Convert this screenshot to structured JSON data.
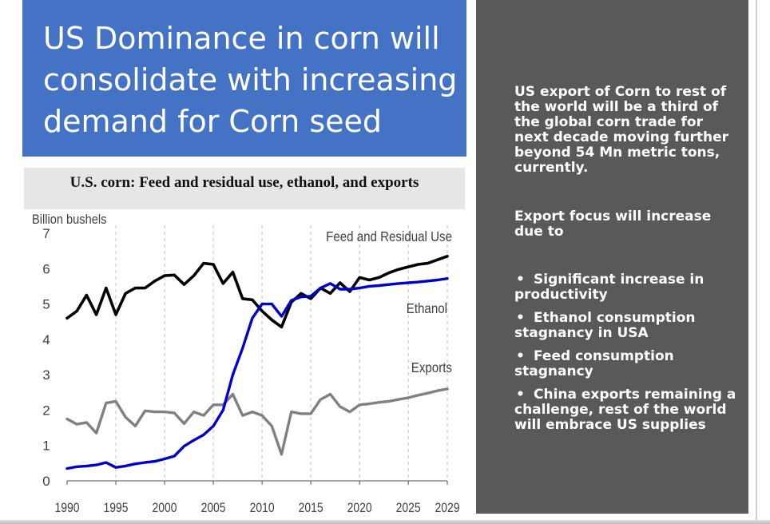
{
  "slide": {
    "title_lines": [
      "US Dominance in corn will",
      "consolidate with increasing",
      "demand for Corn seed"
    ]
  },
  "panel": {
    "paragraph1": "US export of Corn to rest of the world will be  a third of the global corn trade for next decade moving further beyond 54 Mn metric tons, currently.",
    "paragraph2": "Export focus will increase due to",
    "bullets": [
      "Significant increase in productivity",
      "Ethanol consumption stagnancy in USA",
      "Feed consumption stagnancy",
      "China exports remaining a challenge, rest of the world will embrace US supplies"
    ],
    "bullet_symbol": "•"
  },
  "colors": {
    "title_bg": "#4472c4",
    "panel_bg": "#595959",
    "feed": "#000000",
    "ethanol": "#0000cc",
    "exports": "#808080",
    "grid": "#bfbfbf"
  },
  "chart_data": {
    "type": "line",
    "title": "U.S. corn: Feed and residual use, ethanol, and exports",
    "ylabel": "Billion bushels",
    "xlabel": "",
    "ylim": [
      0,
      7
    ],
    "yticks": [
      0,
      1,
      2,
      3,
      4,
      5,
      6,
      7
    ],
    "xlim": [
      1990,
      2029
    ],
    "xticks": [
      1990,
      1995,
      2000,
      2005,
      2010,
      2015,
      2020,
      2025,
      2029
    ],
    "grid": "vertical dashed",
    "legend": "inline labels",
    "x": [
      1990,
      1991,
      1992,
      1993,
      1994,
      1995,
      1996,
      1997,
      1998,
      1999,
      2000,
      2001,
      2002,
      2003,
      2004,
      2005,
      2006,
      2007,
      2008,
      2009,
      2010,
      2011,
      2012,
      2013,
      2014,
      2015,
      2016,
      2017,
      2018,
      2019,
      2020,
      2021,
      2022,
      2023,
      2024,
      2025,
      2026,
      2027,
      2028,
      2029
    ],
    "series": [
      {
        "name": "Feed and Residual Use",
        "values": [
          4.6,
          4.8,
          5.25,
          4.7,
          5.45,
          4.7,
          5.3,
          5.45,
          5.45,
          5.65,
          5.8,
          5.82,
          5.55,
          5.8,
          6.15,
          6.12,
          5.58,
          5.9,
          5.15,
          5.12,
          4.8,
          4.55,
          4.35,
          5.05,
          5.3,
          5.15,
          5.45,
          5.3,
          5.6,
          5.35,
          5.75,
          5.68,
          5.75,
          5.88,
          5.98,
          6.05,
          6.12,
          6.15,
          6.25,
          6.35
        ]
      },
      {
        "name": "Ethanol",
        "values": [
          0.35,
          0.4,
          0.42,
          0.45,
          0.52,
          0.38,
          0.42,
          0.48,
          0.52,
          0.55,
          0.62,
          0.7,
          0.98,
          1.15,
          1.3,
          1.55,
          2.0,
          3.0,
          3.75,
          4.6,
          5.0,
          5.0,
          4.65,
          5.1,
          5.2,
          5.22,
          5.45,
          5.58,
          5.42,
          5.42,
          5.45,
          5.5,
          5.52,
          5.55,
          5.58,
          5.6,
          5.62,
          5.65,
          5.68,
          5.72
        ]
      },
      {
        "name": "Exports",
        "values": [
          1.75,
          1.6,
          1.65,
          1.35,
          2.2,
          2.25,
          1.8,
          1.55,
          1.98,
          1.95,
          1.95,
          1.92,
          1.62,
          1.95,
          1.85,
          2.15,
          2.15,
          2.45,
          1.85,
          1.95,
          1.85,
          1.55,
          0.75,
          1.95,
          1.9,
          1.9,
          2.3,
          2.45,
          2.1,
          1.95,
          2.15,
          2.18,
          2.22,
          2.25,
          2.3,
          2.35,
          2.42,
          2.48,
          2.55,
          2.6
        ]
      }
    ]
  }
}
